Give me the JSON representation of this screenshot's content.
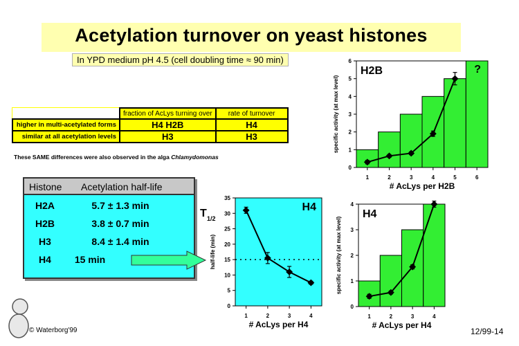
{
  "slide": {
    "title": "Acetylation turnover on yeast histones",
    "subtitle": "In YPD medium pH 4.5 (cell doubling time ≈ 90 min)",
    "copyright": "© Waterborg'99",
    "slide_id": "12/99-14",
    "note_prefix": "These SAME differences were also observed in the alga ",
    "note_organism": "Chlamydomonas"
  },
  "turnover_table": {
    "headers": [
      "fraction of AcLys turning over",
      "rate of turnover"
    ],
    "rows": [
      {
        "label": "higher in multi-acetylated forms",
        "fraction": "H4  H2B",
        "rate": "H4"
      },
      {
        "label": "similar at all acetylation levels",
        "fraction": "H3",
        "rate": "H3"
      }
    ]
  },
  "halflife_table": {
    "headers": [
      "Histone",
      "Acetylation half-life"
    ],
    "rows": [
      {
        "histone": "H2A",
        "value": "5.7 ± 1.3 min"
      },
      {
        "histone": "H2B",
        "value": "3.8 ± 0.7 min"
      },
      {
        "histone": "H3",
        "value": "8.4 ± 1.4 min"
      },
      {
        "histone": "H4",
        "value": "15 min"
      }
    ]
  },
  "colors": {
    "title_bg": "#ffffb0",
    "table_bg": "#ffff00",
    "halflife_bg": "#33ffff",
    "bar_green": "#33ee33",
    "arrow_fill": "#33ff99"
  },
  "chart_data": [
    {
      "id": "h2b",
      "type": "bar",
      "panel_label": "H2B",
      "corner_mark": "?",
      "xlabel": "# AcLys per H2B",
      "ylabel": "specific activity (at max level)",
      "categories": [
        "1",
        "2",
        "3",
        "4",
        "5",
        "6"
      ],
      "values": [
        1,
        2,
        3,
        4,
        5,
        6
      ],
      "ylim": [
        0,
        6
      ],
      "yticks": [
        0,
        1,
        2,
        3,
        4,
        5,
        6
      ],
      "line": {
        "x": [
          1,
          2,
          3,
          4,
          5
        ],
        "y": [
          0.3,
          0.65,
          0.8,
          1.9,
          5.0
        ],
        "err": [
          0.1,
          0.08,
          0.08,
          0.15,
          0.35
        ]
      }
    },
    {
      "id": "h4_halflife",
      "type": "line",
      "panel_label": "H4",
      "y_symbol": "T",
      "y_symbol_sub": "1/2",
      "xlabel": "# AcLys per H4",
      "ylabel": "half-life (min)",
      "x": [
        1,
        2,
        3,
        4
      ],
      "y": [
        31,
        15.5,
        11,
        7.5
      ],
      "err": [
        1,
        1.8,
        1.8,
        0.5
      ],
      "ylim": [
        0,
        35
      ],
      "yticks": [
        0,
        5,
        10,
        15,
        20,
        25,
        30,
        35
      ],
      "reference_line": 15
    },
    {
      "id": "h4_activity",
      "type": "bar",
      "panel_label": "H4",
      "xlabel": "# AcLys per H4",
      "ylabel": "specific activity (at max level)",
      "categories": [
        "1",
        "2",
        "3",
        "4"
      ],
      "values": [
        1,
        2,
        3,
        4
      ],
      "ylim": [
        0,
        4
      ],
      "yticks": [
        0,
        1,
        2,
        3,
        4
      ],
      "line": {
        "x": [
          1,
          2,
          3,
          4
        ],
        "y": [
          0.4,
          0.55,
          1.55,
          4.0
        ],
        "err": [
          0.08,
          0.06,
          0.08,
          0.12
        ]
      }
    }
  ]
}
